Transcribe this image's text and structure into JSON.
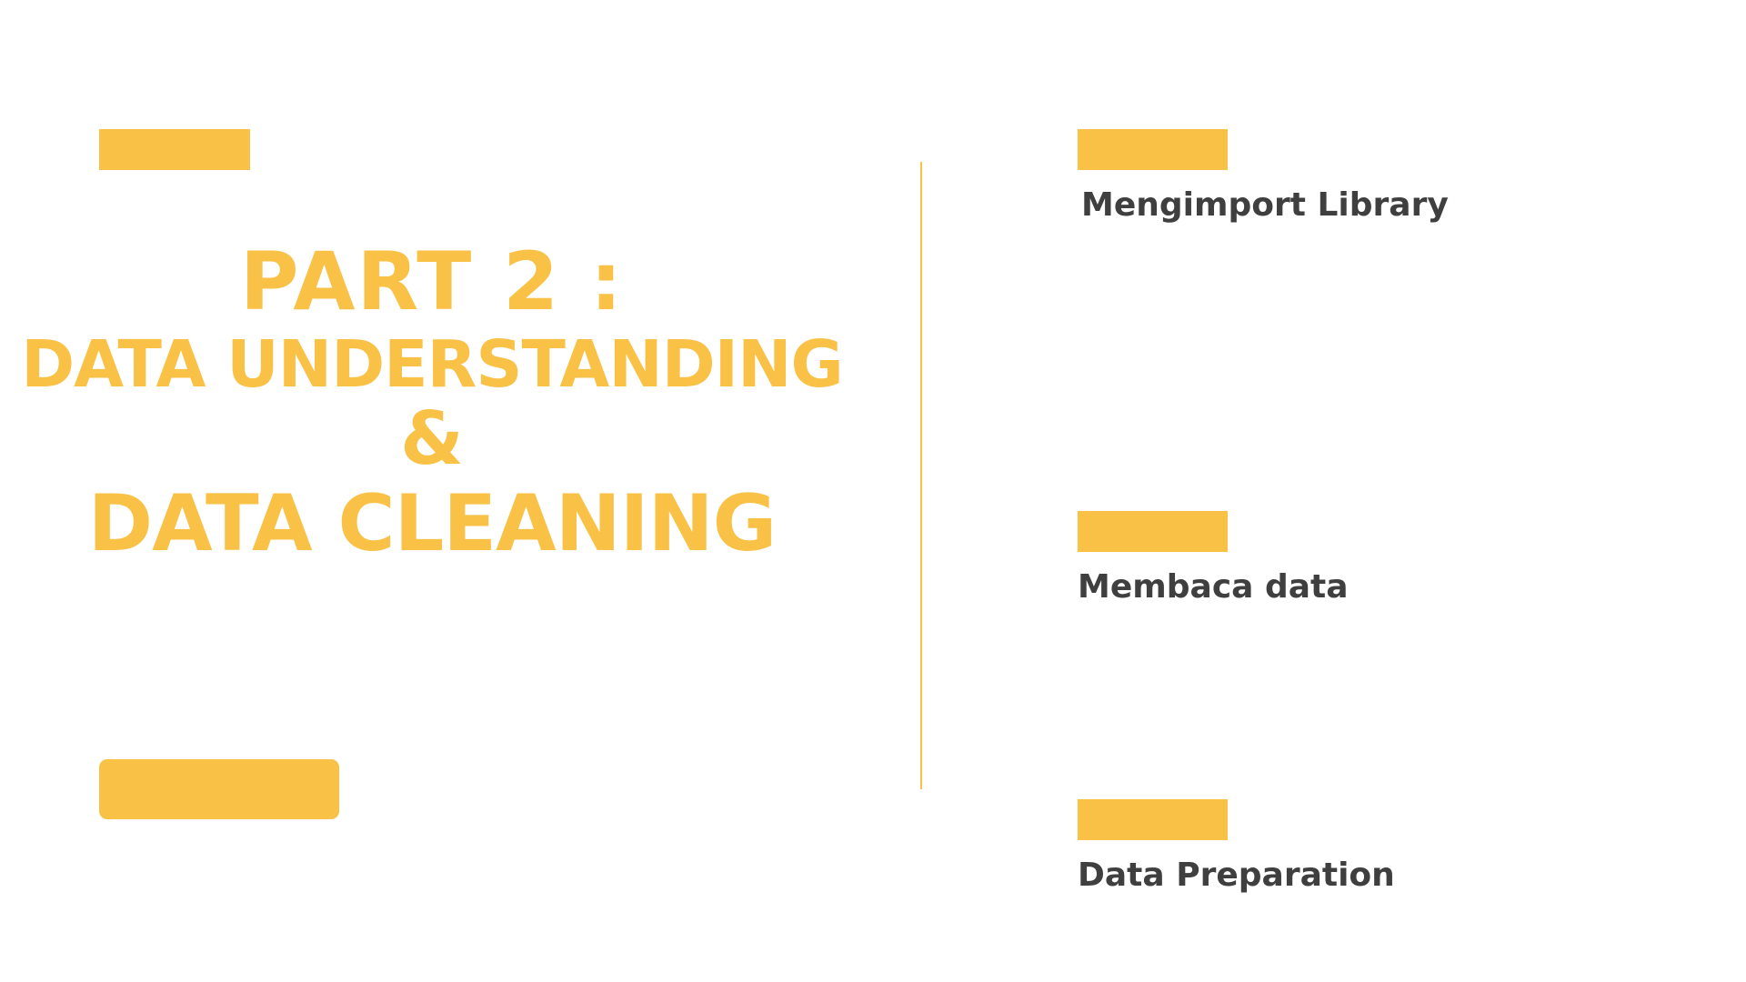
{
  "title": {
    "line1": "PART 2 :",
    "line2": "DATA UNDERSTANDING",
    "line3": "&",
    "line4": "DATA CLEANING"
  },
  "agenda": {
    "items": [
      {
        "label": "Mengimport Library"
      },
      {
        "label": "Membaca data"
      },
      {
        "label": "Data Preparation"
      }
    ]
  },
  "colors": {
    "accent": "#F9C146",
    "text_dark": "#3f3f3f",
    "background": "#ffffff"
  }
}
